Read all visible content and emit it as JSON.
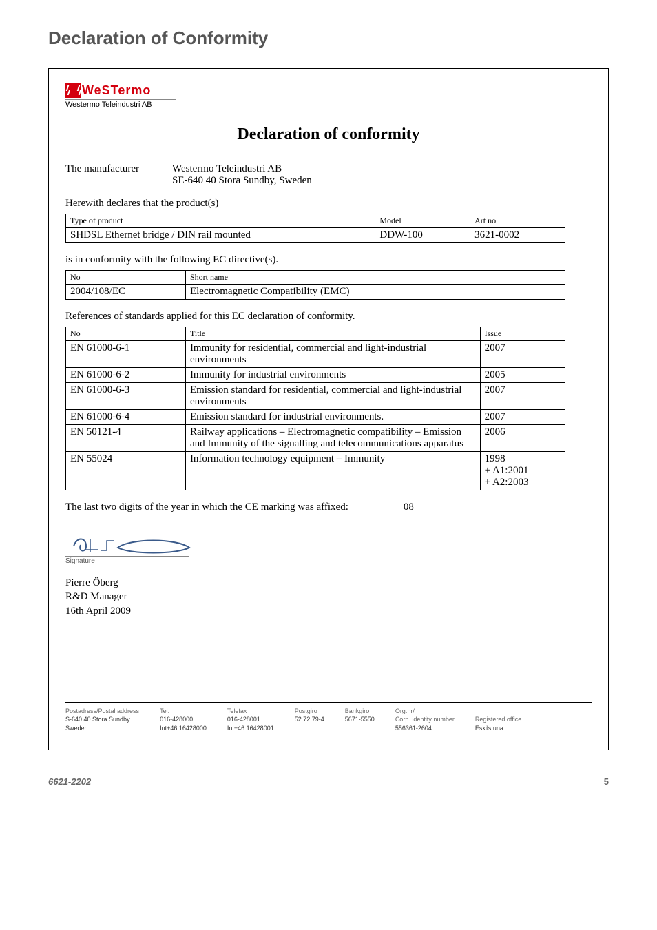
{
  "page_title": "Declaration of Conformity",
  "logo": {
    "brand": "WeSTermo",
    "sub": "Westermo Teleindustri AB"
  },
  "doc_title": "Declaration of conformity",
  "manufacturer": {
    "label": "The manufacturer",
    "name": "Westermo Teleindustri AB",
    "address": "SE-640 40 Stora Sundby, Sweden"
  },
  "declares": "Herewith declares that the product(s)",
  "product_table": {
    "columns": [
      "Type of product",
      "Model",
      "Art no"
    ],
    "rows": [
      [
        "SHDSL Ethernet bridge / DIN rail mounted",
        "DDW-100",
        "3621-0002"
      ]
    ],
    "col_widths": [
      "62%",
      "19%",
      "19%"
    ]
  },
  "conformity_intro": "is in conformity with the following EC directive(s).",
  "directive_table": {
    "columns": [
      "No",
      "Short name"
    ],
    "rows": [
      [
        "2004/108/EC",
        "Electromagnetic Compatibility (EMC)"
      ]
    ],
    "col_widths": [
      "24%",
      "76%"
    ]
  },
  "standards_intro": "References of standards applied for this EC declaration of conformity.",
  "standards_table": {
    "columns": [
      "No",
      "Title",
      "Issue"
    ],
    "col_widths": [
      "24%",
      "59%",
      "17%"
    ],
    "rows": [
      [
        "EN 61000-6-1",
        "Immunity for residential, commercial and light-industrial environments",
        "2007"
      ],
      [
        "EN 61000-6-2",
        "Immunity for industrial environments",
        "2005"
      ],
      [
        "EN 61000-6-3",
        "Emission standard for residential, commercial and light-industrial environments",
        "2007"
      ],
      [
        "EN 61000-6-4",
        "Emission standard for industrial environments.",
        "2007"
      ],
      [
        "EN 50121-4",
        "Railway applications – Electromagnetic compatibility – Emission and Immunity of the signalling and telecommunications apparatus",
        "2006"
      ],
      [
        "EN 55024",
        "Information technology equipment – Immunity",
        "1998\n+ A1:2001\n+ A2:2003"
      ]
    ]
  },
  "affixed": {
    "text": "The last two digits of the year in which the CE marking was affixed:",
    "value": "08"
  },
  "signature_label": "Signature",
  "signer": {
    "name": "Pierre Öberg",
    "role": "R&D Manager",
    "date": "16th April 2009"
  },
  "footer": {
    "addr_hdr": "Postadress/Postal address",
    "addr_l1": "S-640 40  Stora Sundby",
    "addr_l2": "Sweden",
    "tel_hdr": "Tel.",
    "tel_l1": "016-428000",
    "tel_l2": "Int+46 16428000",
    "fax_hdr": "Telefax",
    "fax_l1": "016-428001",
    "fax_l2": "Int+46 16428001",
    "pg_hdr": "Postgiro",
    "pg_l1": "52 72 79-4",
    "bg_hdr": "Bankgiro",
    "bg_l1": "5671-5550",
    "org_hdr": "Org.nr/",
    "org_hdr2": "Corp. identity number",
    "org_l1": "556361-2604",
    "reg_hdr": "Registered office",
    "reg_l1": "Eskilstuna"
  },
  "page_footer": {
    "docnum": "6621-2202",
    "page": "5"
  },
  "colors": {
    "brand": "#d4000e",
    "title": "#555555",
    "border": "#000000",
    "footer_text": "#333333"
  }
}
